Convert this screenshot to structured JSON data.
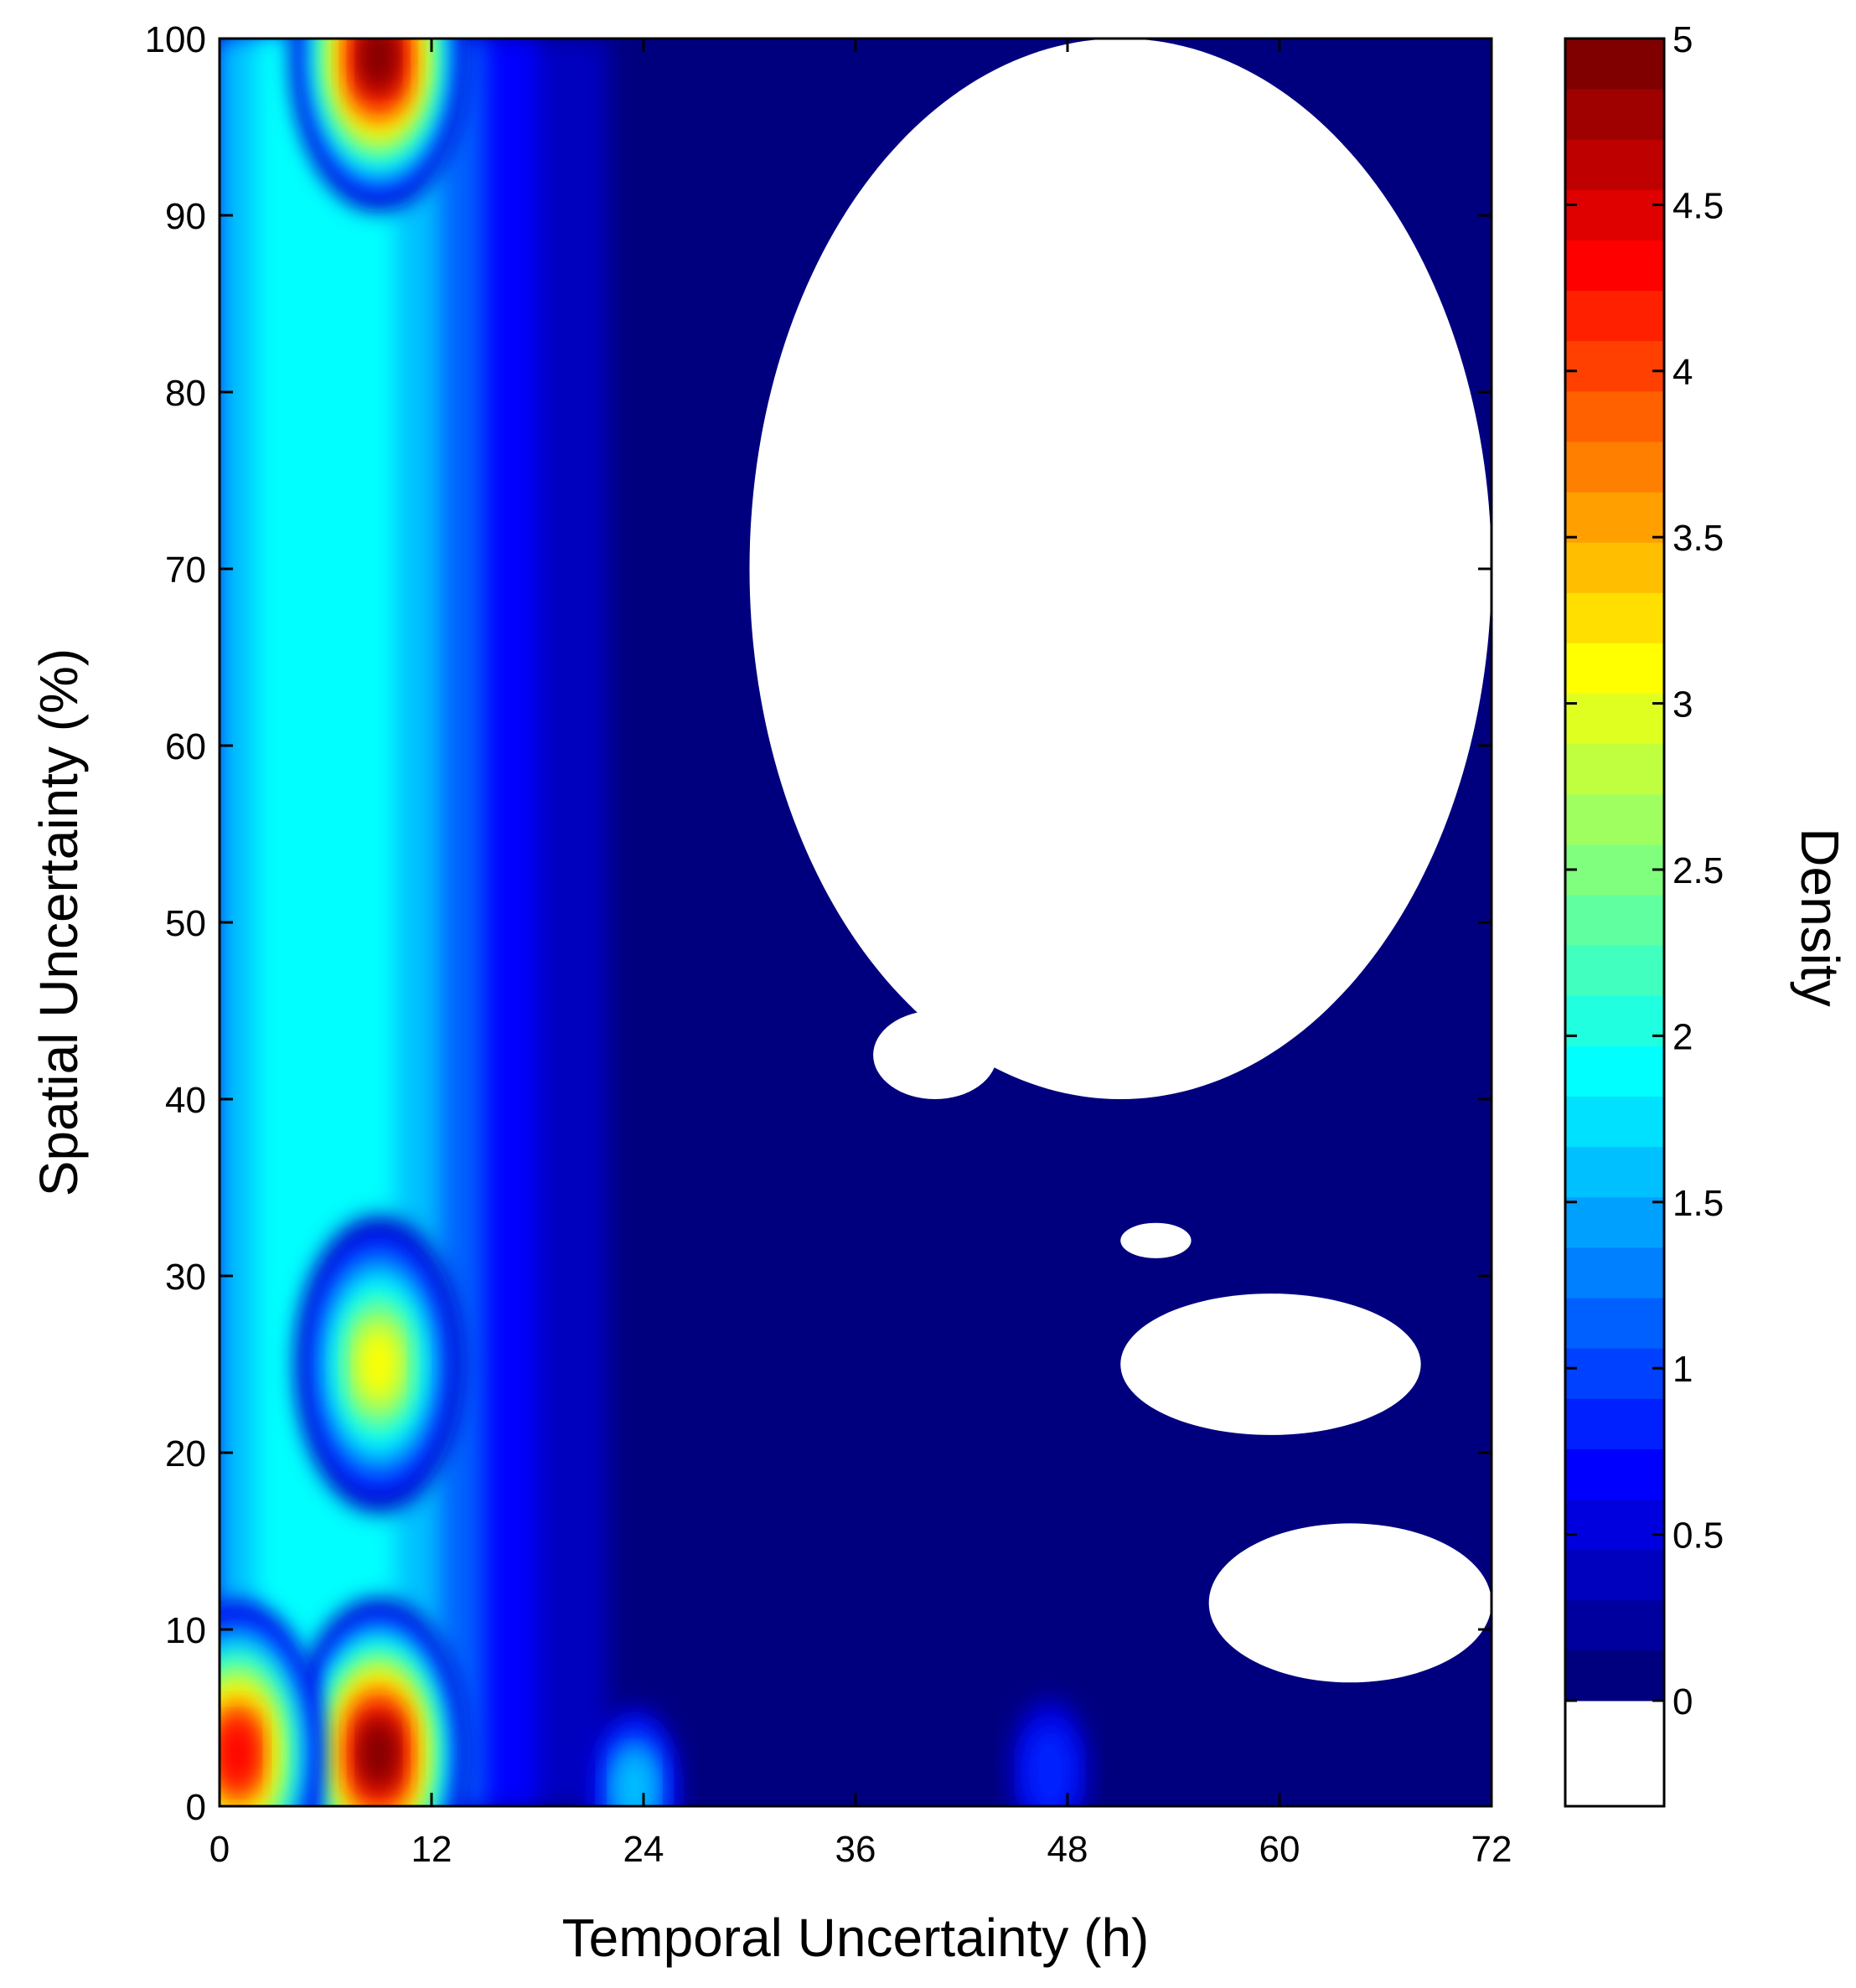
{
  "chart_data": {
    "type": "heatmap",
    "subtype": "filled-contour",
    "title": "",
    "xlabel": "Temporal Uncertainty (h)",
    "ylabel": "Spatial Uncertainty (%)",
    "colorbar_label": "Density",
    "xlim": [
      0,
      72
    ],
    "ylim": [
      0,
      100
    ],
    "x_ticks": [
      0,
      12,
      24,
      36,
      48,
      60,
      72
    ],
    "y_ticks": [
      0,
      10,
      20,
      30,
      40,
      50,
      60,
      70,
      80,
      90,
      100
    ],
    "colorbar_range": [
      0,
      5
    ],
    "colorbar_ticks": [
      0,
      0.5,
      1,
      1.5,
      2,
      2.5,
      3,
      3.5,
      4,
      4.5,
      5
    ],
    "colorbar_tick_labels": [
      "0",
      "0.5",
      "1",
      "1.5",
      "2",
      "2.5",
      "3",
      "3.5",
      "4",
      "4.5",
      "5"
    ],
    "zero_level_color": "#ffffff",
    "colormap": [
      "#00007f",
      "#00009f",
      "#0000bf",
      "#0000df",
      "#0000ff",
      "#0020ff",
      "#0040ff",
      "#0060ff",
      "#0080ff",
      "#00a0ff",
      "#00c0ff",
      "#00e0ff",
      "#00ffff",
      "#20ffdf",
      "#40ffbf",
      "#60ff9f",
      "#80ff7f",
      "#9fff60",
      "#bfff40",
      "#dfff20",
      "#ffff00",
      "#ffdf00",
      "#ffbf00",
      "#ff9f00",
      "#ff8000",
      "#ff6000",
      "#ff4000",
      "#ff2000",
      "#ff0000",
      "#df0000",
      "#bf0000",
      "#9f0000",
      "#800000"
    ],
    "density_features": [
      {
        "description": "dense ridge",
        "x": 9,
        "y_range": [
          0,
          100
        ],
        "peak_density": 5
      },
      {
        "x": 9,
        "y": 3,
        "density": 5
      },
      {
        "x": 1,
        "y": 3,
        "density": 4.4
      },
      {
        "x": 9,
        "y": 25,
        "density": 3.1
      },
      {
        "x": 9,
        "y": 99,
        "density": 5
      },
      {
        "x": 23.5,
        "y": 1,
        "density": 1.6
      },
      {
        "x": 47,
        "y": 2,
        "density": 0.8
      }
    ],
    "zero_regions": [
      {
        "x": [
          30,
          72
        ],
        "y": [
          40,
          100
        ]
      },
      {
        "x": [
          37,
          44
        ],
        "y": [
          40,
          45
        ]
      },
      {
        "x": [
          51,
          55
        ],
        "y": [
          31,
          33
        ]
      },
      {
        "x": [
          51,
          68
        ],
        "y": [
          21,
          29
        ]
      },
      {
        "x": [
          56,
          72
        ],
        "y": [
          7,
          16
        ]
      }
    ]
  }
}
